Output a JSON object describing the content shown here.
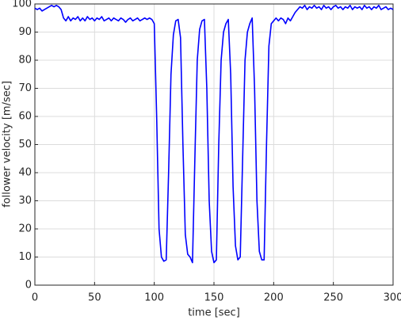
{
  "chart_data": {
    "type": "line",
    "xlabel": "time [sec]",
    "ylabel": "follower velocity [m/sec]",
    "x": [
      0,
      2,
      4,
      6,
      8,
      10,
      12,
      14,
      16,
      18,
      20,
      22,
      24,
      26,
      28,
      30,
      32,
      34,
      36,
      38,
      40,
      42,
      44,
      46,
      48,
      50,
      52,
      54,
      56,
      58,
      60,
      62,
      64,
      66,
      68,
      70,
      72,
      74,
      76,
      78,
      80,
      82,
      84,
      86,
      88,
      90,
      92,
      94,
      96,
      98,
      100,
      102,
      104,
      106,
      108,
      110,
      112,
      114,
      116,
      118,
      120,
      122,
      124,
      126,
      128,
      130,
      132,
      134,
      136,
      138,
      140,
      142,
      144,
      146,
      148,
      150,
      152,
      154,
      156,
      158,
      160,
      162,
      164,
      166,
      168,
      170,
      172,
      174,
      176,
      178,
      180,
      182,
      184,
      186,
      188,
      190,
      192,
      194,
      196,
      198,
      200,
      202,
      204,
      206,
      208,
      210,
      212,
      214,
      216,
      218,
      220,
      222,
      224,
      226,
      228,
      230,
      232,
      234,
      236,
      238,
      240,
      242,
      244,
      246,
      248,
      250,
      252,
      254,
      256,
      258,
      260,
      262,
      264,
      266,
      268,
      270,
      272,
      274,
      276,
      278,
      280,
      282,
      284,
      286,
      288,
      290,
      292,
      294,
      296,
      298,
      300
    ],
    "series": [
      {
        "name": "follower velocity",
        "color": "#0000ff",
        "values": [
          98.5,
          98,
          98.5,
          97.5,
          98,
          98.5,
          99,
          99.5,
          99,
          99.5,
          99,
          98,
          95,
          94,
          95.5,
          94,
          95,
          94.5,
          95.5,
          94,
          95,
          94,
          95.5,
          94.5,
          95,
          94,
          95,
          94.5,
          95.5,
          94,
          94.5,
          95,
          94,
          95,
          94.5,
          94,
          95,
          94.5,
          93.5,
          94.5,
          95,
          94,
          94.5,
          95,
          94,
          94.5,
          95,
          94.5,
          95,
          94.5,
          93,
          60,
          20,
          10,
          8.5,
          9,
          40,
          75,
          89,
          94,
          94.5,
          88,
          50,
          18,
          11,
          10,
          8,
          45,
          80,
          91,
          94,
          94.5,
          70,
          30,
          12,
          8,
          9,
          50,
          80,
          90,
          93,
          94.5,
          75,
          35,
          14,
          9,
          10,
          45,
          80,
          90,
          93,
          95,
          70,
          30,
          12,
          9,
          9,
          50,
          85,
          93,
          94,
          95,
          94,
          95,
          94.5,
          93,
          95,
          94,
          95.5,
          97,
          98,
          99,
          98.5,
          99.5,
          98,
          99,
          98.5,
          99.5,
          98.5,
          99,
          98,
          99.5,
          98.5,
          99,
          98,
          99,
          99.5,
          98.5,
          99,
          98,
          99,
          98.5,
          99.5,
          98,
          99,
          98.5,
          99,
          98,
          99.5,
          98.5,
          99,
          98,
          99,
          98.5,
          99.5,
          98,
          98.5,
          99,
          98,
          98.5,
          98
        ]
      }
    ],
    "xlim": [
      0,
      300
    ],
    "xticks": [
      0,
      50,
      100,
      150,
      200,
      250,
      300
    ],
    "ylim": [
      0,
      100
    ],
    "yticks": [
      0,
      10,
      20,
      30,
      40,
      50,
      60,
      70,
      80,
      90,
      100
    ],
    "grid": true
  }
}
